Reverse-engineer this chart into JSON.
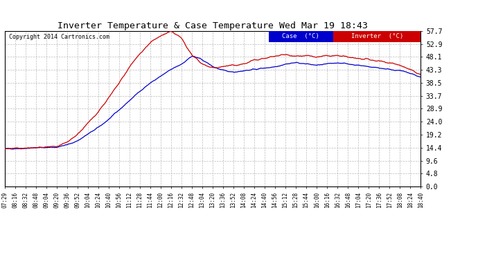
{
  "title": "Inverter Temperature & Case Temperature Wed Mar 19 18:43",
  "copyright": "Copyright 2014 Cartronics.com",
  "yticks": [
    0.0,
    4.8,
    9.6,
    14.4,
    19.2,
    24.0,
    28.9,
    33.7,
    38.5,
    43.3,
    48.1,
    52.9,
    57.7
  ],
  "ymin": 0.0,
  "ymax": 57.7,
  "xtick_labels": [
    "07:29",
    "08:16",
    "08:32",
    "08:48",
    "09:04",
    "09:20",
    "09:36",
    "09:52",
    "10:04",
    "10:24",
    "10:40",
    "10:56",
    "11:12",
    "11:28",
    "11:44",
    "12:00",
    "12:16",
    "12:32",
    "12:48",
    "13:04",
    "13:20",
    "13:36",
    "13:52",
    "14:08",
    "14:24",
    "14:40",
    "14:56",
    "15:12",
    "15:28",
    "15:44",
    "16:00",
    "16:16",
    "16:32",
    "16:48",
    "17:04",
    "17:20",
    "17:36",
    "17:52",
    "18:08",
    "18:24",
    "18:40"
  ],
  "case_color": "#0000cc",
  "inverter_color": "#cc0000",
  "bg_color": "#ffffff",
  "grid_color": "#bbbbbb",
  "legend_case_bg": "#0000cc",
  "legend_inverter_bg": "#cc0000",
  "legend_text_color": "#ffffff",
  "case_data": [
    14.0,
    14.1,
    14.2,
    14.4,
    14.5,
    14.6,
    15.5,
    17.0,
    19.5,
    22.0,
    25.0,
    28.5,
    32.0,
    35.5,
    38.5,
    41.0,
    43.5,
    45.5,
    48.5,
    47.0,
    44.5,
    43.0,
    42.5,
    43.0,
    43.5,
    44.0,
    44.5,
    45.5,
    46.0,
    45.5,
    45.0,
    45.5,
    46.0,
    45.5,
    45.0,
    44.5,
    44.0,
    43.5,
    43.0,
    42.0,
    40.5
  ],
  "inverter_data": [
    14.0,
    14.1,
    14.2,
    14.4,
    14.5,
    14.7,
    16.5,
    19.5,
    23.5,
    28.0,
    33.0,
    38.5,
    44.5,
    49.5,
    53.5,
    56.0,
    57.5,
    55.0,
    48.5,
    45.5,
    44.0,
    44.5,
    45.0,
    45.5,
    47.0,
    47.5,
    48.5,
    49.0,
    48.5,
    48.5,
    48.0,
    48.5,
    48.5,
    48.0,
    47.5,
    47.0,
    46.5,
    46.0,
    45.0,
    43.5,
    41.5
  ]
}
